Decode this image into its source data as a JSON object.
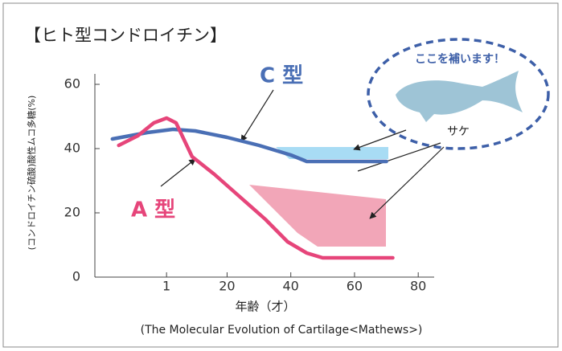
{
  "chart_data": {
    "type": "line",
    "title": "【ヒト型コンドロイチン】",
    "y_label": "(コンドロイチン硫酸)酸性ムコ多糖(%)",
    "x_label": "年齢（才）",
    "source": "(The Molecular Evolution of Cartilage<Mathews>)",
    "annotations": [
      "ここを補います！",
      "サケ"
    ],
    "xlim": [
      -21.5,
      85
    ],
    "xticks": [
      1,
      20,
      40,
      60,
      80
    ],
    "ylim": [
      0,
      60
    ],
    "yticks": [
      0,
      20,
      40,
      60
    ],
    "series": [
      {
        "name": "C 型",
        "color": "#4a6fb5",
        "x": [
          -16,
          -5,
          3,
          10,
          20,
          30,
          40,
          45,
          50,
          60,
          70
        ],
        "values": [
          43,
          45,
          46,
          45.5,
          43.5,
          41,
          38,
          36,
          36,
          36,
          36
        ]
      },
      {
        "name": "A 型",
        "color": "#e6457a",
        "x": [
          -14,
          -8,
          -3,
          1,
          4,
          9,
          16,
          24,
          32,
          39,
          45,
          50,
          60,
          72
        ],
        "values": [
          41,
          44,
          48,
          49.5,
          48,
          37.5,
          32,
          25,
          18,
          11,
          7.5,
          6,
          6,
          6
        ]
      }
    ]
  }
}
